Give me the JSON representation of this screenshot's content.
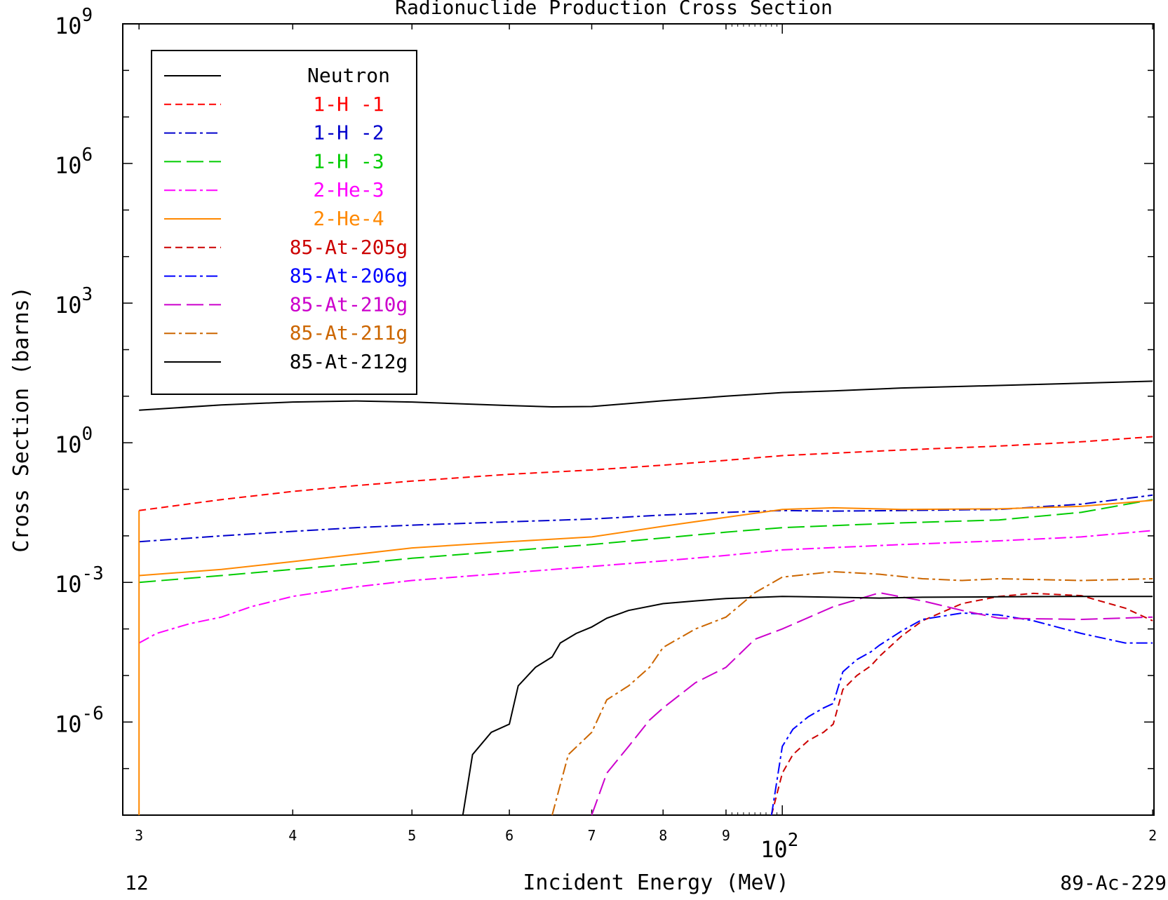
{
  "chart_data": {
    "type": "line",
    "title": "Radionuclide Production Cross Section",
    "xlabel": "Incident Energy (MeV)",
    "ylabel": "Cross Section (barns)",
    "x_scale": "log",
    "y_scale": "log",
    "xlim": [
      29.1,
      200.5
    ],
    "ylim": [
      1e-08,
      1000000000.0
    ],
    "x_ticks": [
      {
        "value": 30,
        "label": "3"
      },
      {
        "value": 40,
        "label": "4"
      },
      {
        "value": 50,
        "label": "5"
      },
      {
        "value": 60,
        "label": "6"
      },
      {
        "value": 70,
        "label": "7"
      },
      {
        "value": 80,
        "label": "8"
      },
      {
        "value": 90,
        "label": "9"
      },
      {
        "value": 200,
        "label": "2"
      }
    ],
    "x_decade_label": {
      "value": 100,
      "base": "10",
      "exp": "2"
    },
    "y_ticks": [
      {
        "value": 1000000000.0,
        "base": "10",
        "exp": "9"
      },
      {
        "value": 1000000.0,
        "base": "10",
        "exp": "6"
      },
      {
        "value": 1000.0,
        "base": "10",
        "exp": "3"
      },
      {
        "value": 1,
        "base": "10",
        "exp": "0"
      },
      {
        "value": 0.001,
        "base": "10",
        "exp": "-3"
      },
      {
        "value": 1e-06,
        "base": "10",
        "exp": "-6"
      }
    ],
    "bottom_left_text": "12",
    "bottom_right_text": "89-Ac-229",
    "legend_position": "top-left",
    "series": [
      {
        "name": "Neutron",
        "color": "#000000",
        "dash": "solid",
        "x": [
          30,
          35,
          40,
          45,
          50,
          60,
          65,
          70,
          80,
          90,
          100,
          110,
          125,
          150,
          175,
          200
        ],
        "y": [
          5.0,
          6.5,
          7.5,
          7.9,
          7.5,
          6.3,
          5.9,
          6.0,
          8.0,
          10,
          12,
          13,
          15,
          17,
          19,
          21
        ]
      },
      {
        "name": "1-H -1",
        "color": "#ff0000",
        "dash": "dashed",
        "x": [
          30,
          35,
          40,
          45,
          50,
          60,
          70,
          80,
          90,
          100,
          125,
          150,
          175,
          200
        ],
        "y": [
          0.035,
          0.06,
          0.09,
          0.12,
          0.15,
          0.21,
          0.26,
          0.33,
          0.42,
          0.53,
          0.7,
          0.85,
          1.05,
          1.35
        ]
      },
      {
        "name": "1-H -2",
        "color": "#0000cc",
        "dash": "dashdot",
        "x": [
          30,
          35,
          40,
          45,
          50,
          60,
          70,
          80,
          90,
          100,
          110,
          125,
          150,
          175,
          200
        ],
        "y": [
          0.0075,
          0.01,
          0.0125,
          0.015,
          0.017,
          0.02,
          0.023,
          0.028,
          0.032,
          0.035,
          0.034,
          0.035,
          0.037,
          0.048,
          0.075
        ]
      },
      {
        "name": "1-H -3",
        "color": "#00cc00",
        "dash": "longdash",
        "x": [
          30,
          35,
          40,
          45,
          50,
          60,
          70,
          80,
          90,
          100,
          125,
          150,
          175,
          200
        ],
        "y": [
          0.001,
          0.0014,
          0.0019,
          0.0025,
          0.0033,
          0.0048,
          0.0065,
          0.009,
          0.012,
          0.015,
          0.019,
          0.022,
          0.032,
          0.06
        ]
      },
      {
        "name": "2-He-3",
        "color": "#ff00ff",
        "dash": "dashdot",
        "x": [
          30,
          31,
          33,
          35,
          37,
          40,
          45,
          50,
          60,
          70,
          80,
          90,
          100,
          125,
          150,
          175,
          200
        ],
        "y": [
          5e-05,
          8e-05,
          0.00013,
          0.00018,
          0.0003,
          0.0005,
          0.0008,
          0.0011,
          0.0016,
          0.0022,
          0.0029,
          0.0038,
          0.005,
          0.0065,
          0.0078,
          0.0095,
          0.013
        ]
      },
      {
        "name": "2-He-4",
        "color": "#ff8800",
        "dash": "solid",
        "x": [
          30,
          35,
          40,
          45,
          50,
          60,
          70,
          80,
          90,
          100,
          110,
          125,
          150,
          175,
          200
        ],
        "y": [
          0.0014,
          0.0019,
          0.0028,
          0.004,
          0.0055,
          0.0075,
          0.0095,
          0.016,
          0.025,
          0.037,
          0.04,
          0.037,
          0.038,
          0.043,
          0.058
        ]
      },
      {
        "name": "85-At-205g",
        "color": "#cc0000",
        "dash": "dashed",
        "x": [
          98,
          100,
          102,
          105,
          108,
          110,
          112,
          115,
          118,
          120,
          125,
          130,
          140,
          150,
          160,
          175,
          190,
          200
        ],
        "y": [
          1e-08,
          8e-08,
          2e-07,
          4e-07,
          6e-07,
          9e-07,
          5e-06,
          1e-05,
          1.6e-05,
          2.6e-05,
          7e-05,
          0.00015,
          0.00035,
          0.0005,
          0.00058,
          0.00052,
          0.00028,
          0.00015
        ]
      },
      {
        "name": "85-At-206g",
        "color": "#0000ff",
        "dash": "dashdot",
        "x": [
          98,
          100,
          102,
          105,
          108,
          110,
          112,
          115,
          118,
          120,
          125,
          130,
          140,
          150,
          160,
          175,
          190,
          200
        ],
        "y": [
          1e-08,
          3e-07,
          7e-07,
          1.3e-06,
          2e-06,
          2.5e-06,
          1.2e-05,
          2.2e-05,
          3.2e-05,
          4.5e-05,
          9e-05,
          0.00016,
          0.00022,
          0.0002,
          0.00015,
          8e-05,
          5e-05,
          5e-05
        ]
      },
      {
        "name": "85-At-210g",
        "color": "#cc00cc",
        "dash": "longdash",
        "x": [
          70,
          72,
          75,
          78,
          80,
          85,
          90,
          95,
          100,
          110,
          120,
          130,
          140,
          150,
          175,
          200
        ],
        "y": [
          1e-08,
          8e-08,
          3e-07,
          1.1e-06,
          2e-06,
          7e-06,
          1.5e-05,
          6e-05,
          0.0001,
          0.0003,
          0.0006,
          0.0004,
          0.00025,
          0.00017,
          0.00016,
          0.00018
        ]
      },
      {
        "name": "85-At-211g",
        "color": "#cc6600",
        "dash": "dashdot",
        "x": [
          65,
          67,
          70,
          72,
          75,
          78,
          80,
          85,
          90,
          95,
          100,
          110,
          120,
          130,
          140,
          150,
          175,
          200
        ],
        "y": [
          1e-08,
          2e-07,
          6e-07,
          3e-06,
          6e-06,
          1.5e-05,
          4e-05,
          0.0001,
          0.00018,
          0.0006,
          0.0013,
          0.0017,
          0.0015,
          0.0012,
          0.0011,
          0.0012,
          0.0011,
          0.0012
        ]
      },
      {
        "name": "85-At-212g",
        "color": "#000000",
        "dash": "solid",
        "x": [
          55,
          56,
          58,
          60,
          61,
          63,
          65,
          66,
          68,
          70,
          72,
          75,
          80,
          85,
          90,
          100,
          110,
          120,
          130,
          150,
          175,
          200
        ],
        "y": [
          1e-08,
          2e-07,
          6e-07,
          9e-07,
          6e-06,
          1.5e-05,
          2.5e-05,
          5e-05,
          8e-05,
          0.00011,
          0.00017,
          0.00025,
          0.00035,
          0.0004,
          0.00045,
          0.0005,
          0.00048,
          0.00046,
          0.00048,
          0.00049,
          0.0005,
          0.0005
        ]
      }
    ]
  }
}
